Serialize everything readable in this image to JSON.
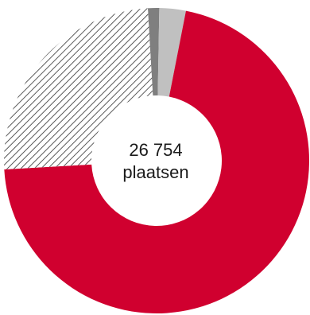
{
  "chart_data": {
    "type": "pie",
    "donut": true,
    "center_label": [
      "26 754",
      "plaatsen"
    ],
    "slices": [
      {
        "value": 1.2,
        "color": "#7f7f7f",
        "pattern": "solid"
      },
      {
        "value": 2.8,
        "color": "#c0c0c0",
        "pattern": "solid"
      },
      {
        "value": 71.0,
        "color": "#d0002f",
        "pattern": "solid"
      },
      {
        "value": 25.0,
        "color": "#333333",
        "pattern": "diagonal-hatch"
      }
    ],
    "start_angle_deg": -3.3
  }
}
